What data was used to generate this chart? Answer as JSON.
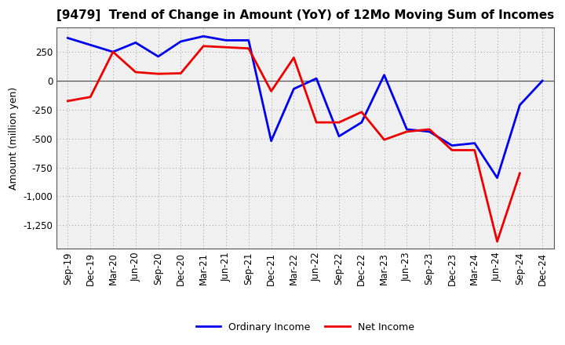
{
  "title": "[9479]  Trend of Change in Amount (YoY) of 12Mo Moving Sum of Incomes",
  "ylabel": "Amount (million yen)",
  "x_labels": [
    "Sep-19",
    "Dec-19",
    "Mar-20",
    "Jun-20",
    "Sep-20",
    "Dec-20",
    "Mar-21",
    "Jun-21",
    "Sep-21",
    "Dec-21",
    "Mar-22",
    "Jun-22",
    "Sep-22",
    "Dec-22",
    "Mar-23",
    "Jun-23",
    "Sep-23",
    "Dec-23",
    "Mar-24",
    "Jun-24",
    "Sep-24",
    "Dec-24"
  ],
  "ordinary_income": [
    370,
    310,
    250,
    330,
    210,
    340,
    385,
    350,
    350,
    -520,
    -70,
    20,
    -480,
    -360,
    50,
    -420,
    -440,
    -560,
    -540,
    -840,
    -210,
    0
  ],
  "net_income": [
    -175,
    -140,
    250,
    75,
    60,
    65,
    300,
    290,
    280,
    -90,
    200,
    -360,
    -360,
    -270,
    -510,
    -440,
    -420,
    -600,
    -600,
    -1390,
    -800,
    null
  ],
  "ordinary_color": "#0000ee",
  "net_color": "#ee0000",
  "ylim": [
    -1450,
    460
  ],
  "yticks": [
    250,
    0,
    -250,
    -500,
    -750,
    -1000,
    -1250
  ],
  "background_color": "#ffffff",
  "plot_bg_color": "#f0f0f0",
  "grid_color": "#999999",
  "title_fontsize": 11,
  "legend_fontsize": 9,
  "axis_fontsize": 8.5
}
